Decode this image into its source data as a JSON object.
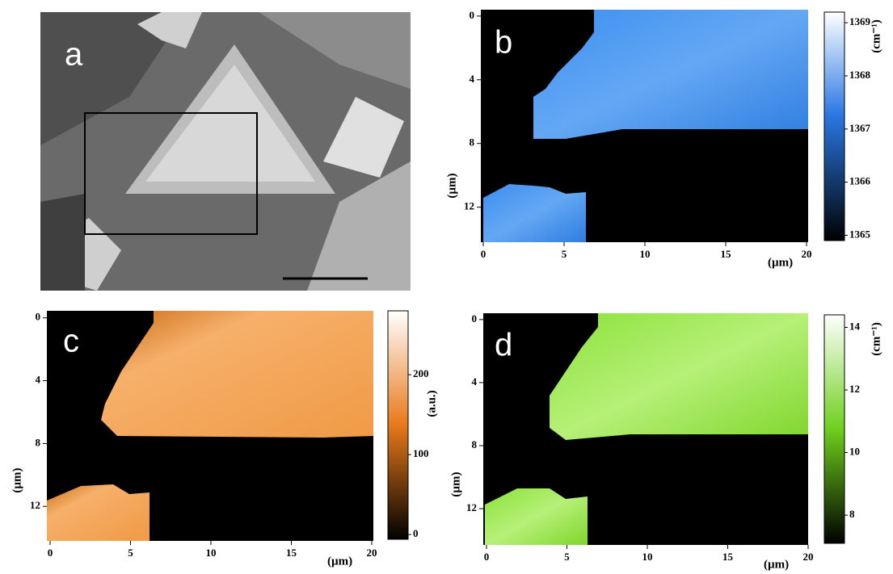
{
  "panels": [
    {
      "label": "a"
    },
    {
      "label": "b",
      "xlim": [
        -0.15,
        20.1
      ],
      "ylim": [
        -0.4,
        14.2
      ],
      "xticks": [
        0,
        5,
        10,
        15,
        20
      ],
      "yticks": [
        0,
        4,
        8,
        12
      ],
      "x_axis_label": "(µm)",
      "y_axis_label": "(µm)",
      "colorbar": {
        "label": "(cm⁻¹)",
        "lim": [
          1364.9,
          1369.2
        ],
        "ticks": [
          1365,
          1366,
          1367,
          1368,
          1369
        ]
      }
    },
    {
      "label": "c",
      "xlim": [
        -0.2,
        20.1
      ],
      "ylim": [
        -0.45,
        14.2
      ],
      "xticks": [
        0,
        5,
        10,
        15,
        20
      ],
      "yticks": [
        0,
        4,
        8,
        12
      ],
      "x_axis_label": "(µm)",
      "y_axis_label": "(µm)",
      "colorbar": {
        "label": "(a.u.)",
        "lim": [
          -6,
          280
        ],
        "ticks": [
          0,
          100,
          200
        ]
      }
    },
    {
      "label": "d",
      "xlim": [
        -0.2,
        20.0
      ],
      "ylim": [
        -0.4,
        14.3
      ],
      "xticks": [
        0,
        5,
        10,
        15,
        20
      ],
      "yticks": [
        0,
        4,
        8,
        12
      ],
      "x_axis_label": "(µm)",
      "y_axis_label": "(µm)",
      "colorbar": {
        "label": "(cm⁻¹)",
        "lim": [
          7.1,
          14.4
        ],
        "ticks": [
          8,
          10,
          12,
          14
        ]
      }
    }
  ]
}
